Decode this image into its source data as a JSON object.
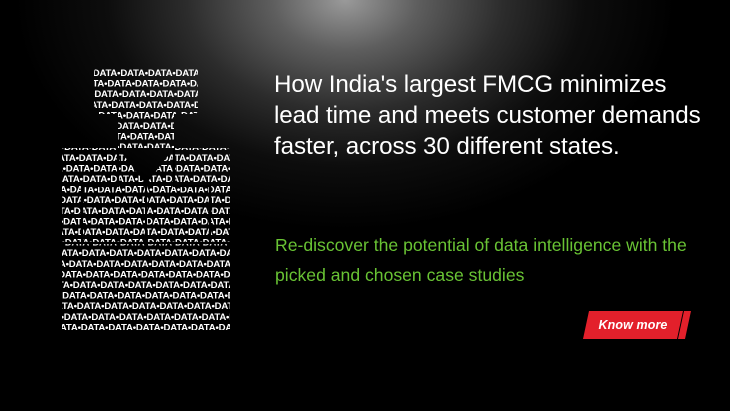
{
  "banner": {
    "headline": "How India's largest FMCG minimizes lead time and meets customer demands faster, across 30 different states.",
    "subline": "Re-discover the potential of data intelligence with the picked and chosen case studies",
    "cta_label": "Know more",
    "icon_text": "•DATA•DATA•DATA•DATA•DATA•DATA•DATA•DATA",
    "icon_name": "data-text-person-icon",
    "colors": {
      "headline": "#ffffff",
      "subline": "#69c334",
      "cta_background": "#e3202b",
      "background": "#000000"
    }
  }
}
